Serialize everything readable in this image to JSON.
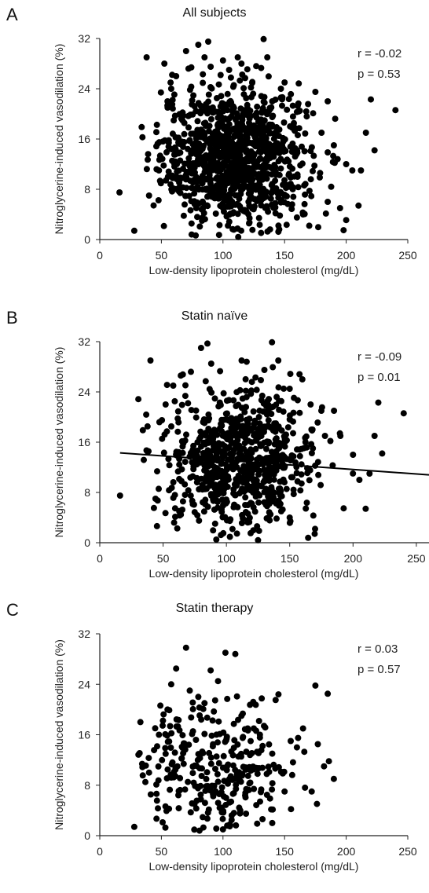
{
  "chart_data": [
    {
      "type": "scatter",
      "panel": "A",
      "title": "All subjects",
      "xlabel": "Low-density lipoprotein cholesterol (mg/dL)",
      "ylabel": "Nitroglycerine-induced vasodilation (%)",
      "xlim": [
        0,
        250
      ],
      "ylim": [
        0,
        32
      ],
      "xticks": [
        0,
        50,
        100,
        150,
        200,
        250
      ],
      "yticks": [
        0,
        8,
        16,
        24,
        32
      ],
      "stats": {
        "r": "r = -0.02",
        "p": "p = 0.53"
      },
      "regression": null,
      "grid": false,
      "n_points": 1100,
      "points": [
        [
          16,
          7.5
        ],
        [
          28,
          1.4
        ],
        [
          34,
          17.9
        ],
        [
          38,
          29
        ],
        [
          40,
          7
        ],
        [
          48,
          11
        ],
        [
          55,
          22
        ],
        [
          58,
          24
        ],
        [
          62,
          26
        ],
        [
          67,
          19
        ],
        [
          70,
          30
        ],
        [
          72,
          27.2
        ],
        [
          77,
          21.2
        ],
        [
          80,
          31
        ],
        [
          83,
          3
        ],
        [
          85,
          29
        ],
        [
          88,
          31.5
        ],
        [
          90,
          27.5
        ],
        [
          95,
          22.5
        ],
        [
          100,
          28.5
        ],
        [
          105,
          27
        ],
        [
          112,
          29
        ],
        [
          115,
          28
        ],
        [
          118,
          25.7
        ],
        [
          127,
          27.6
        ],
        [
          131,
          27.3
        ],
        [
          133,
          31.9
        ],
        [
          136,
          29
        ],
        [
          140,
          22
        ],
        [
          147,
          24
        ],
        [
          150,
          25
        ],
        [
          160,
          20.3
        ],
        [
          168,
          19.6
        ],
        [
          175,
          23.5
        ],
        [
          180,
          17
        ],
        [
          185,
          22
        ],
        [
          190,
          15
        ],
        [
          200,
          12
        ],
        [
          205,
          11
        ],
        [
          210,
          5.4
        ],
        [
          212,
          11
        ],
        [
          216,
          17
        ],
        [
          220,
          22.3
        ],
        [
          223,
          14.2
        ],
        [
          240,
          20.6
        ],
        [
          170,
          2.2
        ],
        [
          150,
          7
        ],
        [
          185,
          6
        ],
        [
          165,
          4
        ],
        [
          195,
          5
        ]
      ]
    },
    {
      "type": "scatter",
      "panel": "B",
      "title": "Statin naïve",
      "xlabel": "Low-density lipoprotein cholesterol (mg/dL)",
      "ylabel": "Nitroglycerine-induced vasodilation (%)",
      "xlim": [
        0,
        260
      ],
      "ylim": [
        0,
        32
      ],
      "xticks": [
        0,
        50,
        100,
        150,
        200,
        250
      ],
      "yticks": [
        0,
        8,
        16,
        24,
        32
      ],
      "stats": {
        "r": "r = -0.09",
        "p": "p = 0.01"
      },
      "regression": {
        "x": [
          16,
          260
        ],
        "y": [
          14.3,
          10.8
        ]
      },
      "grid": false,
      "n_points": 800,
      "points": [
        [
          16,
          7.5
        ],
        [
          34,
          17.9
        ],
        [
          40,
          29
        ],
        [
          44,
          7
        ],
        [
          52,
          22
        ],
        [
          58,
          25
        ],
        [
          64,
          26.6
        ],
        [
          72,
          27.2
        ],
        [
          80,
          31
        ],
        [
          85,
          31.7
        ],
        [
          88,
          28.5
        ],
        [
          95,
          27.3
        ],
        [
          102,
          22.7
        ],
        [
          112,
          29
        ],
        [
          116,
          28.8
        ],
        [
          123,
          26.3
        ],
        [
          130,
          27.5
        ],
        [
          136,
          31.9
        ],
        [
          141,
          29
        ],
        [
          150,
          24.5
        ],
        [
          160,
          26
        ],
        [
          168,
          18
        ],
        [
          175,
          21
        ],
        [
          185,
          21
        ],
        [
          190,
          17
        ],
        [
          200,
          14
        ],
        [
          205,
          10
        ],
        [
          210,
          5.4
        ],
        [
          213,
          11
        ],
        [
          217,
          17
        ],
        [
          220,
          22.3
        ],
        [
          223,
          14.2
        ],
        [
          240,
          20.6
        ],
        [
          170,
          2.2
        ],
        [
          92,
          0.5
        ],
        [
          125,
          0.4
        ],
        [
          150,
          4
        ]
      ]
    },
    {
      "type": "scatter",
      "panel": "C",
      "title": "Statin therapy",
      "xlabel": "Low-density lipoprotein cholesterol (mg/dL)",
      "ylabel": "Nitroglycerine-induced vasodilation (%)",
      "xlim": [
        0,
        250
      ],
      "ylim": [
        0,
        32
      ],
      "xticks": [
        0,
        50,
        100,
        150,
        200,
        250
      ],
      "yticks": [
        0,
        8,
        16,
        24,
        32
      ],
      "stats": {
        "r": "r = 0.03",
        "p": "p = 0.57"
      },
      "regression": null,
      "grid": false,
      "n_points": 330,
      "points": [
        [
          28,
          1.4
        ],
        [
          33,
          18
        ],
        [
          37,
          8.5
        ],
        [
          40,
          10
        ],
        [
          48,
          16
        ],
        [
          55,
          20
        ],
        [
          58,
          24
        ],
        [
          62,
          26.5
        ],
        [
          70,
          29.8
        ],
        [
          73,
          23
        ],
        [
          80,
          22
        ],
        [
          85,
          21
        ],
        [
          90,
          26.2
        ],
        [
          96,
          24.5
        ],
        [
          102,
          29
        ],
        [
          110,
          28.8
        ],
        [
          115,
          19
        ],
        [
          120,
          17
        ],
        [
          125,
          17
        ],
        [
          130,
          16
        ],
        [
          140,
          13
        ],
        [
          145,
          22.4
        ],
        [
          150,
          7
        ],
        [
          155,
          15
        ],
        [
          160,
          14
        ],
        [
          165,
          17
        ],
        [
          172,
          7
        ],
        [
          175,
          23.8
        ],
        [
          177,
          14.5
        ],
        [
          182,
          11
        ],
        [
          185,
          22.5
        ],
        [
          186,
          11.8
        ],
        [
          190,
          9
        ],
        [
          100,
          1
        ],
        [
          140,
          2
        ]
      ]
    }
  ]
}
